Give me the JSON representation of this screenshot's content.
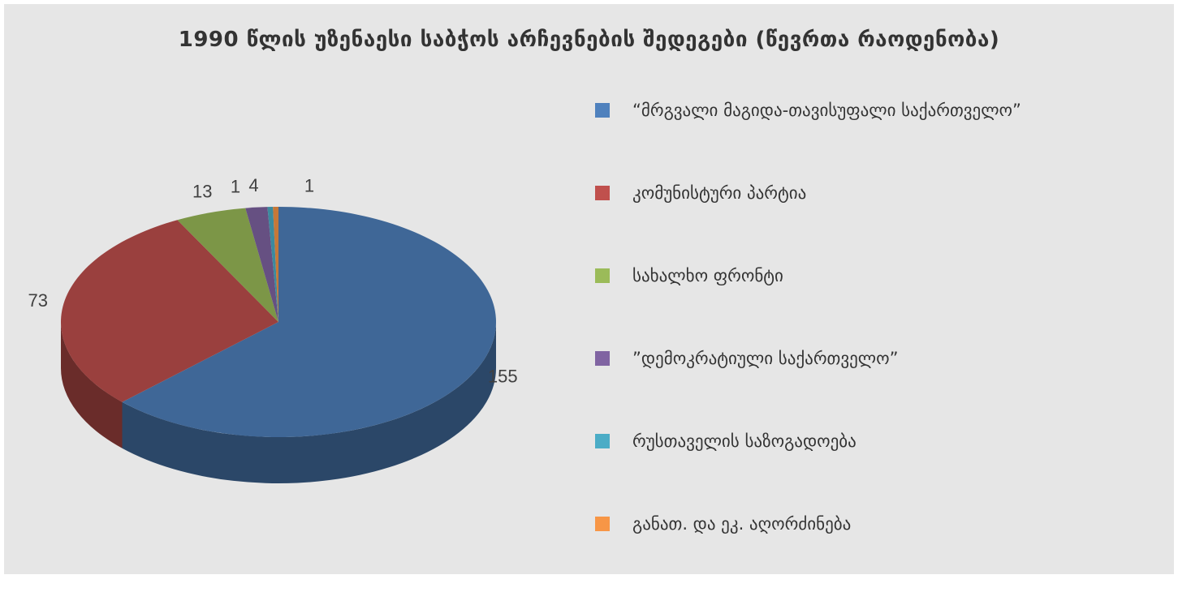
{
  "chart_data": {
    "type": "pie",
    "title": "1990 წლის უზენაესი საბჭოს არჩევნების შედეგები (წევრთა რაოდენობა)",
    "categories": [
      "“მრგვალი მაგიდა-თავისუფალი საქართველო”",
      "კომუნისტური პარტია",
      "სახალხო ფრონტი",
      "”დემოკრატიული საქართველო”",
      "რუსთაველის საზოგადოება",
      "განათ. და ეკ. აღორძინება"
    ],
    "values": [
      155,
      73,
      13,
      4,
      1,
      1
    ],
    "data_labels": [
      "155",
      "73",
      "13",
      "4",
      "1",
      "1"
    ],
    "colors": [
      "#4f81bd",
      "#c0504d",
      "#9bbb59",
      "#8064a2",
      "#4bacc6",
      "#f79646"
    ],
    "legend_position": "right",
    "style": "3d"
  }
}
